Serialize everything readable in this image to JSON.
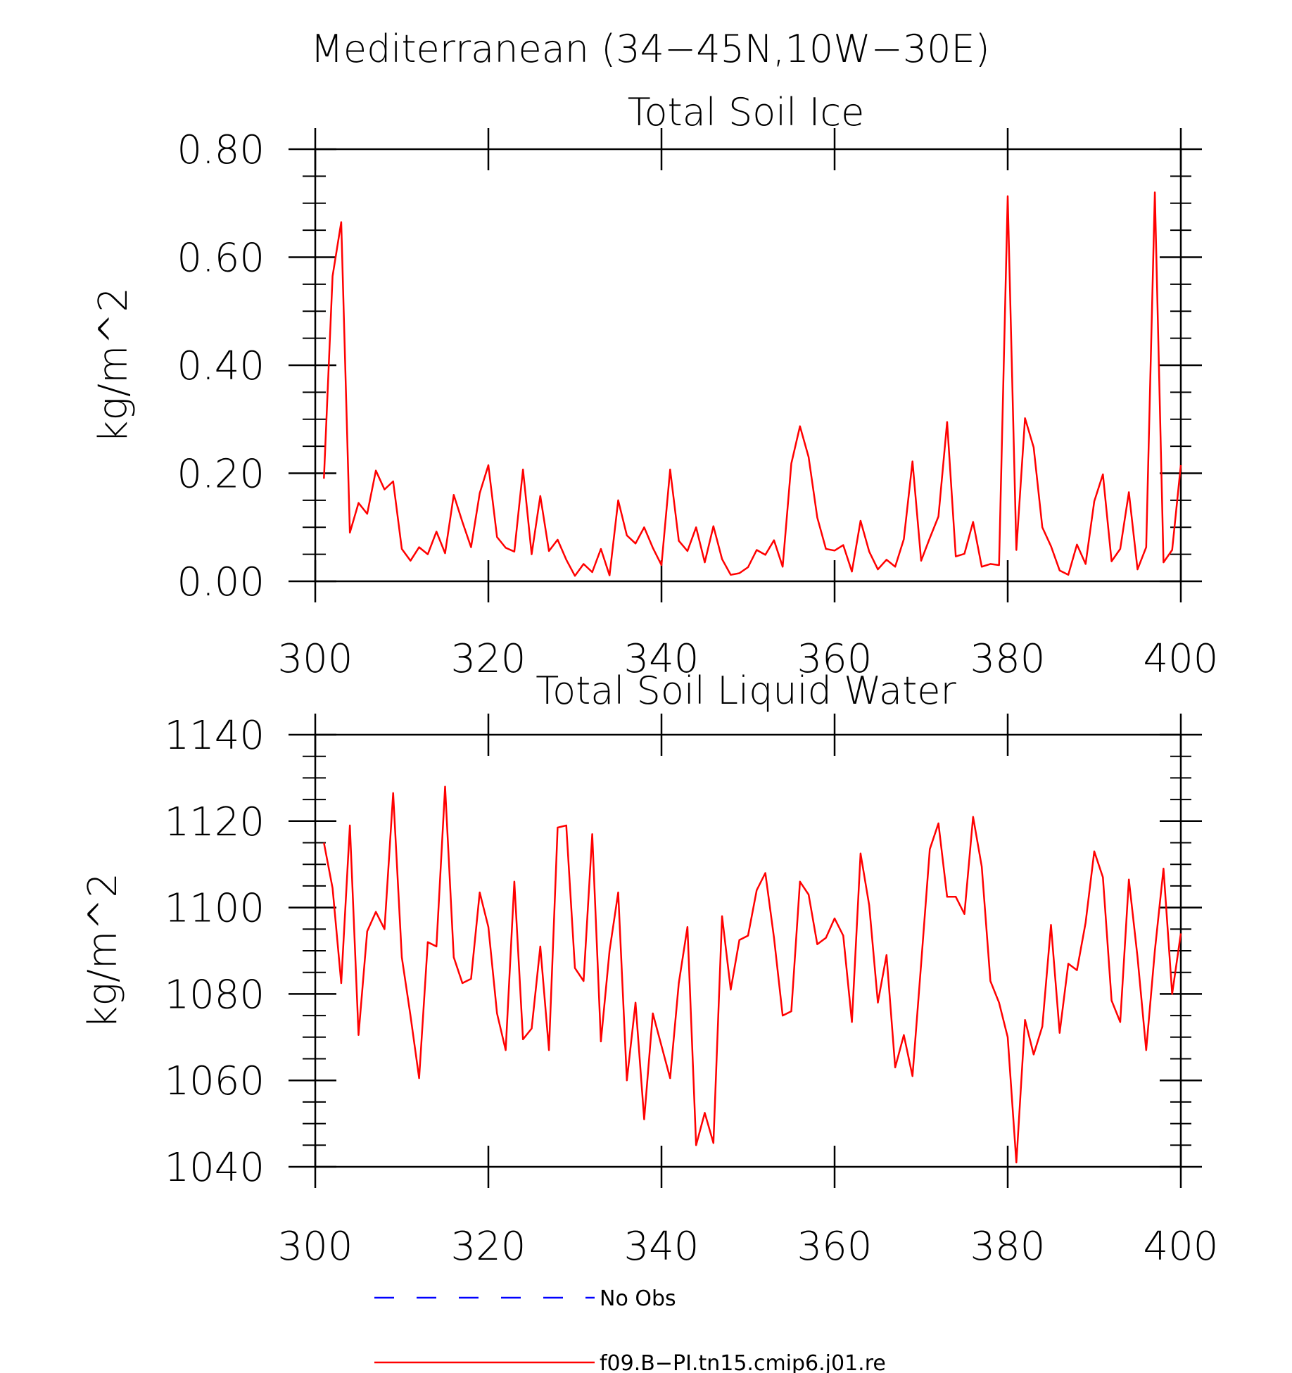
{
  "suptitle": "Mediterranean (34−45N,10W−30E)",
  "colors": {
    "model": "#ff0000",
    "obs": "#0000ff",
    "axes": "#000000"
  },
  "legend": {
    "obs_label": "No Obs",
    "model_label": "f09.B−PI.tn15.cmip6.j01.re"
  },
  "chart_data": [
    {
      "type": "line",
      "title": "Total Soil Ice",
      "ylabel": "kg/m^2",
      "xlabel": "",
      "xlim": [
        300,
        400
      ],
      "ylim": [
        0,
        0.8
      ],
      "xticks": [
        300,
        320,
        340,
        360,
        380,
        400
      ],
      "yticks": [
        0.0,
        0.2,
        0.4,
        0.6,
        0.8
      ],
      "ytick_labels": [
        "0.00",
        "0.20",
        "0.40",
        "0.60",
        "0.80"
      ],
      "grid": false,
      "series": [
        {
          "x": [
            301,
            302,
            303,
            304,
            305,
            306,
            307,
            308,
            309,
            310,
            311,
            312,
            313,
            314,
            315,
            316,
            317,
            318,
            319,
            320,
            321,
            322,
            323,
            324,
            325,
            326,
            327,
            328,
            329,
            330,
            331,
            332,
            333,
            334,
            335,
            336,
            337,
            338,
            339,
            340,
            341,
            342,
            343,
            344,
            345,
            346,
            347,
            348,
            349,
            350,
            351,
            352,
            353,
            354,
            355,
            356,
            357,
            358,
            359,
            360,
            361,
            362,
            363,
            364,
            365,
            366,
            367,
            368,
            369,
            370,
            371,
            372,
            373,
            374,
            375,
            376,
            377,
            378,
            379,
            380,
            381,
            382,
            383,
            384,
            385,
            386,
            387,
            388,
            389,
            390,
            391,
            392,
            393,
            394,
            395,
            396,
            397,
            398,
            399,
            400
          ],
          "values": [
            0.19,
            0.565,
            0.665,
            0.09,
            0.145,
            0.125,
            0.205,
            0.17,
            0.185,
            0.06,
            0.038,
            0.063,
            0.05,
            0.092,
            0.052,
            0.16,
            0.11,
            0.063,
            0.163,
            0.215,
            0.082,
            0.062,
            0.055,
            0.207,
            0.05,
            0.158,
            0.056,
            0.077,
            0.04,
            0.01,
            0.032,
            0.017,
            0.06,
            0.011,
            0.15,
            0.085,
            0.07,
            0.1,
            0.062,
            0.03,
            0.207,
            0.075,
            0.056,
            0.1,
            0.035,
            0.102,
            0.041,
            0.012,
            0.015,
            0.026,
            0.058,
            0.049,
            0.076,
            0.027,
            0.218,
            0.287,
            0.23,
            0.118,
            0.06,
            0.057,
            0.067,
            0.018,
            0.112,
            0.055,
            0.022,
            0.04,
            0.027,
            0.078,
            0.222,
            0.038,
            0.08,
            0.12,
            0.295,
            0.046,
            0.051,
            0.11,
            0.027,
            0.032,
            0.03,
            0.713,
            0.058,
            0.302,
            0.248,
            0.1,
            0.065,
            0.02,
            0.012,
            0.068,
            0.032,
            0.148,
            0.198,
            0.037,
            0.06,
            0.165,
            0.022,
            0.063,
            0.72,
            0.035,
            0.058,
            0.215
          ]
        }
      ]
    },
    {
      "type": "line",
      "title": "Total Soil Liquid Water",
      "ylabel": "kg/m^2",
      "xlabel": "",
      "xlim": [
        300,
        400
      ],
      "ylim": [
        1040,
        1140
      ],
      "xticks": [
        300,
        320,
        340,
        360,
        380,
        400
      ],
      "yticks": [
        1040,
        1060,
        1080,
        1100,
        1120,
        1140
      ],
      "ytick_labels": [
        "1040",
        "1060",
        "1080",
        "1100",
        "1120",
        "1140"
      ],
      "grid": false,
      "series": [
        {
          "x": [
            301,
            302,
            303,
            304,
            305,
            306,
            307,
            308,
            309,
            310,
            311,
            312,
            313,
            314,
            315,
            316,
            317,
            318,
            319,
            320,
            321,
            322,
            323,
            324,
            325,
            326,
            327,
            328,
            329,
            330,
            331,
            332,
            333,
            334,
            335,
            336,
            337,
            338,
            339,
            340,
            341,
            342,
            343,
            344,
            345,
            346,
            347,
            348,
            349,
            350,
            351,
            352,
            353,
            354,
            355,
            356,
            357,
            358,
            359,
            360,
            361,
            362,
            363,
            364,
            365,
            366,
            367,
            368,
            369,
            370,
            371,
            372,
            373,
            374,
            375,
            376,
            377,
            378,
            379,
            380,
            381,
            382,
            383,
            384,
            385,
            386,
            387,
            388,
            389,
            390,
            391,
            392,
            393,
            394,
            395,
            396,
            397,
            398,
            399,
            400
          ],
          "values": [
            1115,
            1104.5,
            1082.5,
            1119,
            1070.5,
            1094.5,
            1099,
            1095,
            1126.5,
            1088.5,
            1075,
            1060.5,
            1092,
            1091,
            1128,
            1088.5,
            1082.5,
            1083.5,
            1103.5,
            1095.5,
            1075.5,
            1067,
            1106,
            1069.5,
            1072,
            1091,
            1067,
            1118.5,
            1119,
            1086,
            1083,
            1117,
            1069,
            1090,
            1103.5,
            1060,
            1078,
            1051,
            1075.5,
            1068,
            1060.5,
            1082.5,
            1095.5,
            1045,
            1052.5,
            1045.5,
            1098,
            1081,
            1092.5,
            1093.5,
            1104,
            1108,
            1093,
            1075,
            1076,
            1106,
            1103,
            1091.5,
            1093,
            1097.5,
            1093.5,
            1073.5,
            1112.5,
            1100.5,
            1078,
            1089,
            1063,
            1070.5,
            1061,
            1087,
            1113.5,
            1119.5,
            1102.5,
            1102.5,
            1098.5,
            1121,
            1109.5,
            1083,
            1078,
            1070,
            1041,
            1074,
            1066,
            1072.5,
            1096,
            1071,
            1087,
            1085.5,
            1096.5,
            1113,
            1107,
            1078.5,
            1073.5,
            1106.5,
            1088.5,
            1067,
            1090,
            1109,
            1080,
            1094
          ]
        }
      ]
    }
  ]
}
